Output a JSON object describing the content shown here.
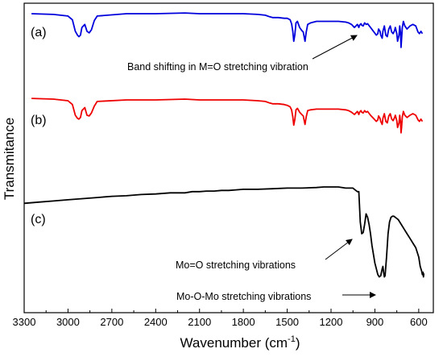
{
  "chart_data": {
    "type": "line",
    "xlabel": "Wavenumber (cm",
    "xlabel_sup": "-1",
    "xlabel_close": ")",
    "ylabel": "Transmitance",
    "xlim": [
      3300,
      500
    ],
    "x_reversed": true,
    "xticks": [
      3300,
      3000,
      2700,
      2400,
      2100,
      1800,
      1500,
      1200,
      900,
      600
    ],
    "grid": false,
    "legend": "none",
    "series": [
      {
        "name": "(a)",
        "color": "#0000dd",
        "x": [
          3250,
          3100,
          3000,
          2970,
          2950,
          2935,
          2925,
          2915,
          2905,
          2885,
          2870,
          2855,
          2840,
          2820,
          2800,
          2600,
          2400,
          2200,
          2100,
          2000,
          1800,
          1700,
          1650,
          1620,
          1600,
          1560,
          1520,
          1500,
          1480,
          1470,
          1462,
          1455,
          1448,
          1440,
          1430,
          1415,
          1400,
          1390,
          1378,
          1370,
          1360,
          1340,
          1300,
          1250,
          1200,
          1150,
          1100,
          1080,
          1060,
          1040,
          1030,
          1020,
          1010,
          1005,
          995,
          990,
          980,
          970,
          960,
          950,
          930,
          910,
          890,
          880,
          875,
          865,
          860,
          850,
          845,
          835,
          825,
          815,
          805,
          795,
          785,
          775,
          765,
          760,
          750,
          745,
          735,
          730,
          725,
          721,
          717,
          712,
          705,
          695,
          680,
          660,
          640,
          620,
          605,
          595,
          585,
          575
        ],
        "y": [
          98,
          97,
          95,
          90,
          75,
          70,
          68,
          70,
          80,
          84,
          75,
          73,
          77,
          89,
          95,
          98,
          98,
          99,
          98,
          98,
          98,
          97,
          96,
          94,
          93,
          93,
          92,
          92,
          90,
          85,
          75,
          62,
          70,
          86,
          88,
          80,
          76,
          74,
          62,
          74,
          84,
          86,
          88,
          88,
          88,
          88,
          87,
          86,
          84,
          80,
          82,
          84,
          80,
          83,
          85,
          83,
          82,
          86,
          84,
          85,
          80,
          75,
          70,
          72,
          78,
          75,
          70,
          66,
          75,
          82,
          70,
          68,
          78,
          82,
          74,
          72,
          76,
          80,
          72,
          62,
          70,
          82,
          74,
          54,
          65,
          80,
          88,
          82,
          78,
          82,
          84,
          82,
          74,
          72,
          75,
          72
        ]
      },
      {
        "name": "(b)",
        "color": "#ee0000",
        "x": [
          3250,
          3100,
          3000,
          2970,
          2950,
          2935,
          2925,
          2915,
          2905,
          2885,
          2870,
          2855,
          2840,
          2820,
          2800,
          2600,
          2400,
          2200,
          2100,
          2000,
          1800,
          1700,
          1650,
          1620,
          1600,
          1560,
          1520,
          1500,
          1480,
          1470,
          1462,
          1455,
          1448,
          1440,
          1430,
          1415,
          1400,
          1390,
          1378,
          1370,
          1360,
          1340,
          1300,
          1250,
          1200,
          1150,
          1100,
          1080,
          1060,
          1040,
          1030,
          1020,
          1010,
          1005,
          995,
          990,
          980,
          970,
          960,
          950,
          930,
          910,
          890,
          880,
          875,
          865,
          860,
          850,
          845,
          835,
          825,
          815,
          805,
          795,
          785,
          775,
          765,
          760,
          750,
          745,
          735,
          730,
          725,
          721,
          717,
          712,
          705,
          695,
          680,
          660,
          640,
          620,
          605,
          595,
          585,
          575
        ],
        "y": [
          72,
          71,
          69,
          64,
          50,
          46,
          45,
          47,
          56,
          60,
          50,
          49,
          53,
          62,
          68,
          70,
          70,
          71,
          70,
          70,
          70,
          69,
          68,
          66,
          65,
          65,
          64,
          63,
          61,
          57,
          48,
          37,
          44,
          57,
          59,
          54,
          51,
          49,
          38,
          48,
          56,
          57,
          58,
          58,
          58,
          58,
          57,
          56,
          54,
          51,
          53,
          55,
          51,
          54,
          56,
          54,
          53,
          56,
          54,
          55,
          50,
          46,
          42,
          44,
          49,
          46,
          42,
          38,
          46,
          52,
          42,
          40,
          49,
          52,
          45,
          43,
          47,
          50,
          43,
          34,
          40,
          50,
          42,
          27,
          34,
          48,
          55,
          50,
          47,
          50,
          52,
          50,
          44,
          42,
          45,
          42
        ]
      },
      {
        "name": "(c)",
        "color": "#000000",
        "x": [
          3300,
          3200,
          3100,
          3000,
          2900,
          2800,
          2700,
          2600,
          2500,
          2400,
          2300,
          2200,
          2150,
          2100,
          2050,
          2000,
          1950,
          1900,
          1850,
          1800,
          1700,
          1600,
          1500,
          1400,
          1300,
          1250,
          1200,
          1150,
          1100,
          1070,
          1050,
          1040,
          1030,
          1020,
          1010,
          1000,
          990,
          980,
          970,
          960,
          950,
          940,
          930,
          920,
          900,
          880,
          870,
          860,
          850,
          845,
          840,
          835,
          830,
          825,
          820,
          810,
          800,
          790,
          780,
          770,
          760,
          740,
          720,
          700,
          680,
          660,
          640,
          620,
          600,
          590,
          580,
          575,
          570,
          568,
          565
        ],
        "y": [
          -34,
          -33,
          -32,
          -31,
          -30,
          -29,
          -28,
          -27.5,
          -26.5,
          -26,
          -25,
          -25,
          -24,
          -24,
          -23.5,
          -23.5,
          -23,
          -23,
          -22.5,
          -22,
          -22,
          -21.5,
          -21,
          -21,
          -20.5,
          -20,
          -20,
          -20,
          -21,
          -21,
          -21,
          -22,
          -23,
          -24,
          -24,
          -50,
          -60,
          -59,
          -52,
          -43,
          -46,
          -52,
          -60,
          -70,
          -85,
          -95,
          -97,
          -96,
          -90,
          -88,
          -93,
          -97,
          -96,
          -88,
          -80,
          -60,
          -50,
          -46,
          -45,
          -45,
          -46,
          -48,
          -52,
          -56,
          -60,
          -64,
          -68,
          -72,
          -80,
          -88,
          -92,
          -95,
          -93,
          -97,
          -94
        ]
      }
    ],
    "series_labels": [
      "(a)",
      "(b)",
      "(c)"
    ],
    "annotations": [
      {
        "text": "Band shifting in M=O stretching vibration"
      },
      {
        "text": "Mo=O stretching vibrations"
      },
      {
        "text": "Mo-O-Mo stretching vibrations"
      }
    ]
  }
}
